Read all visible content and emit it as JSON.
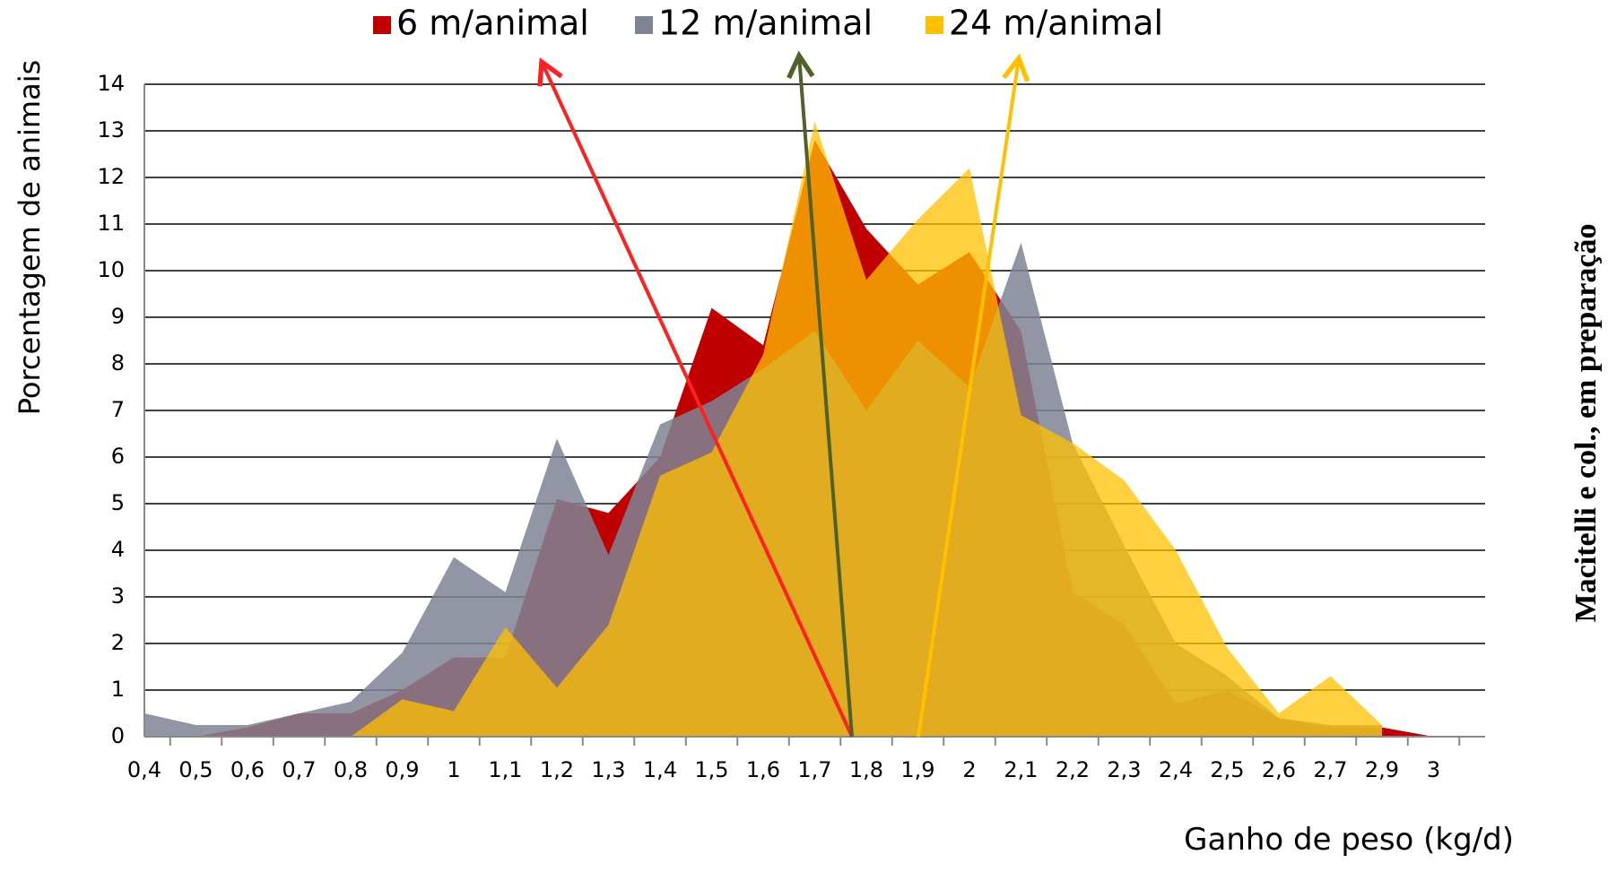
{
  "chart_data": {
    "type": "area",
    "xlabel": "Ganho de peso (kg/d)",
    "ylabel": "Porcentagem de animais",
    "annotation": "Macitelli e col., em preparação",
    "categories": [
      "0,4",
      "0,5",
      "0,6",
      "0,7",
      "0,8",
      "0,9",
      "1",
      "1,1",
      "1,2",
      "1,3",
      "1,4",
      "1,5",
      "1,6",
      "1,7",
      "1,8",
      "1,9",
      "2",
      "2,1",
      "2,2",
      "2,3",
      "2,4",
      "2,5",
      "2,6",
      "2,7",
      "2,9",
      "3"
    ],
    "series": [
      {
        "name": "6 m/animal",
        "color": "#c00000",
        "values": [
          0,
          0,
          0.2,
          0.5,
          0.5,
          1.0,
          1.7,
          1.7,
          5.1,
          4.8,
          6.0,
          9.2,
          8.4,
          12.8,
          10.9,
          9.7,
          10.4,
          8.7,
          3.1,
          2.4,
          0.7,
          1.0,
          0.4,
          0.2,
          0.2,
          0
        ]
      },
      {
        "name": "12 m/animal",
        "color": "#7f8494",
        "values": [
          0.5,
          0.25,
          0.25,
          0.5,
          0.75,
          1.8,
          3.85,
          3.1,
          6.4,
          3.9,
          6.7,
          7.2,
          7.9,
          8.7,
          7.0,
          8.5,
          7.5,
          10.6,
          6.3,
          4.1,
          2.0,
          1.3,
          0.4,
          0.25,
          0.25,
          null
        ]
      },
      {
        "name": "24 m/animal",
        "color": "#ffc000",
        "values": [
          null,
          null,
          null,
          null,
          0,
          0.8,
          0.55,
          2.35,
          1.05,
          2.4,
          5.6,
          6.1,
          8.2,
          13.2,
          9.8,
          11.1,
          12.2,
          6.9,
          6.3,
          5.5,
          4.0,
          1.9,
          0.5,
          1.3,
          0.25,
          null
        ]
      }
    ],
    "ylim": [
      0,
      14
    ],
    "yticks": [
      0,
      1,
      2,
      3,
      4,
      5,
      6,
      7,
      8,
      9,
      10,
      11,
      12,
      13,
      14
    ],
    "grid": true,
    "legend": "top"
  }
}
